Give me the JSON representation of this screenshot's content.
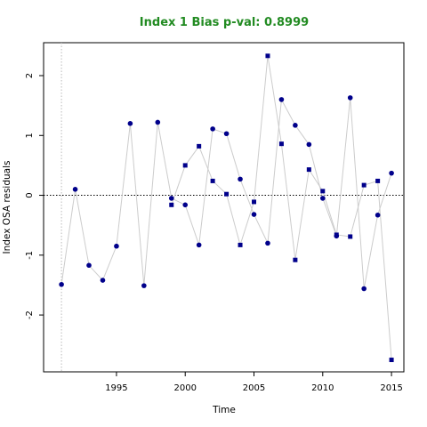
{
  "chart_data": {
    "type": "scatter",
    "title": "Index 1 Bias p-val: 0.8999",
    "title_color": "#228B22",
    "xlabel": "Time",
    "ylabel": "Index OSA residuals",
    "xlim": [
      1989.7,
      2015.9
    ],
    "ylim": [
      -2.95,
      2.55
    ],
    "xticks": [
      1995,
      2000,
      2005,
      2010,
      2015
    ],
    "yticks": [
      -2,
      -1,
      0,
      1,
      2
    ],
    "reference_line_y": 0,
    "reference_line_x": 1991,
    "grid": false,
    "marker_color": "#00008B",
    "line_color": "#cccccc",
    "series": [
      {
        "marker": "circle",
        "x": [
          1991,
          1992,
          1993,
          1994,
          1995,
          1996,
          1997,
          1998,
          1999,
          2000,
          2001,
          2002,
          2003,
          2004,
          2005,
          2006,
          2007,
          2008,
          2009,
          2010,
          2011,
          2012,
          2013,
          2014,
          2015
        ],
        "y": [
          -1.49,
          0.1,
          -1.17,
          -1.42,
          -0.85,
          1.2,
          -1.51,
          1.22,
          -0.05,
          -0.16,
          -0.83,
          1.11,
          1.03,
          0.27,
          -0.32,
          -0.8,
          1.6,
          1.17,
          0.85,
          -0.05,
          -0.68,
          1.63,
          -1.56,
          -0.33,
          0.37
        ]
      },
      {
        "marker": "square",
        "x": [
          1999,
          2000,
          2001,
          2002,
          2003,
          2004,
          2005,
          2006,
          2007,
          2008,
          2009,
          2010,
          2011,
          2012,
          2013,
          2014,
          2015
        ],
        "y": [
          -0.16,
          0.5,
          0.82,
          0.24,
          0.02,
          -0.83,
          -0.11,
          2.33,
          0.86,
          -1.08,
          0.43,
          0.07,
          -0.66,
          -0.69,
          0.17,
          0.24,
          -2.75
        ]
      }
    ]
  }
}
